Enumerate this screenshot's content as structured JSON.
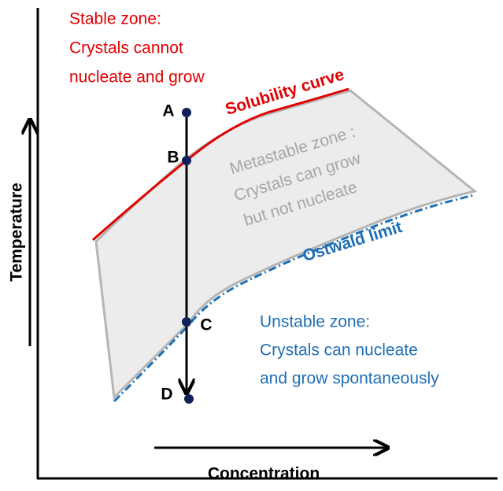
{
  "stable_zone": [
    "Stable zone:",
    "Crystals cannot",
    "nucleate and grow"
  ],
  "solubility_curve": "Solubility curve",
  "metastable_zone": [
    "Metastable zone :",
    "Crystals can grow",
    "but not nucleate"
  ],
  "ostwald_limit": "Ostwald limit",
  "unstable_zone": [
    "Unstable zone:",
    "Crystals can nucleate",
    "and grow spontaneously"
  ],
  "points": [
    "A",
    "B",
    "C",
    "D"
  ],
  "y_axis_label": "Temperature",
  "x_axis_label": "Concentration"
}
